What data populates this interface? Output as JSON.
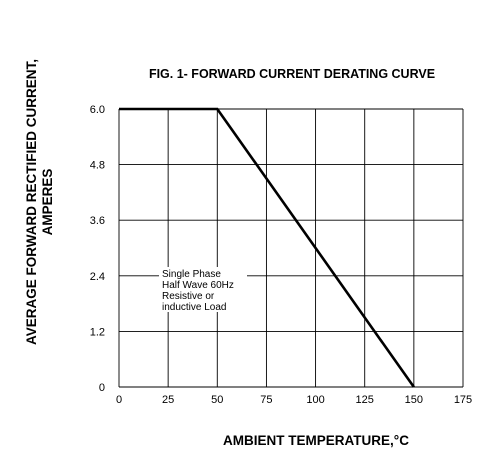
{
  "chart_data": {
    "type": "line",
    "title": "FIG. 1- FORWARD CURRENT DERATING CURVE",
    "xlabel": "AMBIENT TEMPERATURE,°C",
    "ylabel_lines": [
      "AVERAGE FORWARD RECTIFIED CURRENT,",
      "AMPERES"
    ],
    "x_ticks": [
      0,
      25,
      50,
      75,
      100,
      125,
      150,
      175
    ],
    "y_ticks": [
      "0",
      "1.2",
      "2.4",
      "3.6",
      "4.8",
      "6.0"
    ],
    "y_tick_values": [
      0,
      1.2,
      2.4,
      3.6,
      4.8,
      6.0
    ],
    "xlim": [
      0,
      175
    ],
    "ylim": [
      0,
      6.0
    ],
    "grid": true,
    "series": [
      {
        "x": [
          0,
          50,
          150
        ],
        "y": [
          6.0,
          6.0,
          0
        ],
        "color": "#000000"
      }
    ],
    "annotation_lines": [
      "Single Phase",
      "Half Wave 60Hz",
      "Resistive or",
      "inductive Load"
    ]
  }
}
